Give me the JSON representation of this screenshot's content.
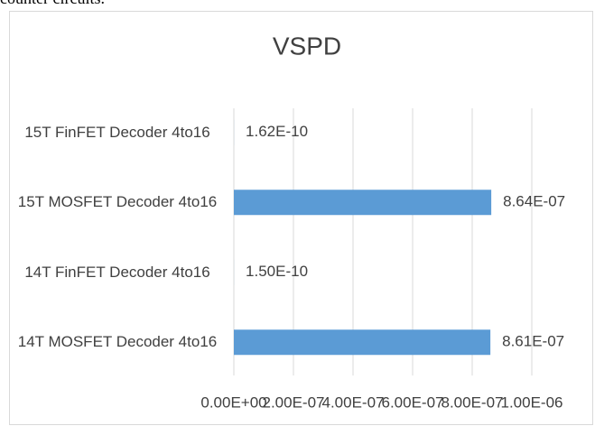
{
  "caption": "counter circuits.",
  "chart_data": {
    "type": "hbar",
    "title": "VSPD",
    "categories": [
      "15T FinFET Decoder 4to16",
      "15T MOSFET Decoder 4to16",
      "14T FinFET Decoder 4to16",
      "14T MOSFET Decoder 4to16"
    ],
    "values": [
      1.62e-10,
      8.64e-07,
      1.5e-10,
      8.61e-07
    ],
    "value_labels": [
      "1.62E-10",
      "8.64E-07",
      "1.50E-10",
      "8.61E-07"
    ],
    "color": "#5b9bd5",
    "xlim": [
      0,
      1e-06
    ],
    "xticks": [
      {
        "value": 0,
        "label": "0.00E+00"
      },
      {
        "value": 2e-07,
        "label": "2.00E-07"
      },
      {
        "value": 4e-07,
        "label": "4.00E-07"
      },
      {
        "value": 6e-07,
        "label": "6.00E-07"
      },
      {
        "value": 8e-07,
        "label": "8.00E-07"
      },
      {
        "value": 1e-06,
        "label": "1.00E-06"
      }
    ],
    "grid": true
  }
}
